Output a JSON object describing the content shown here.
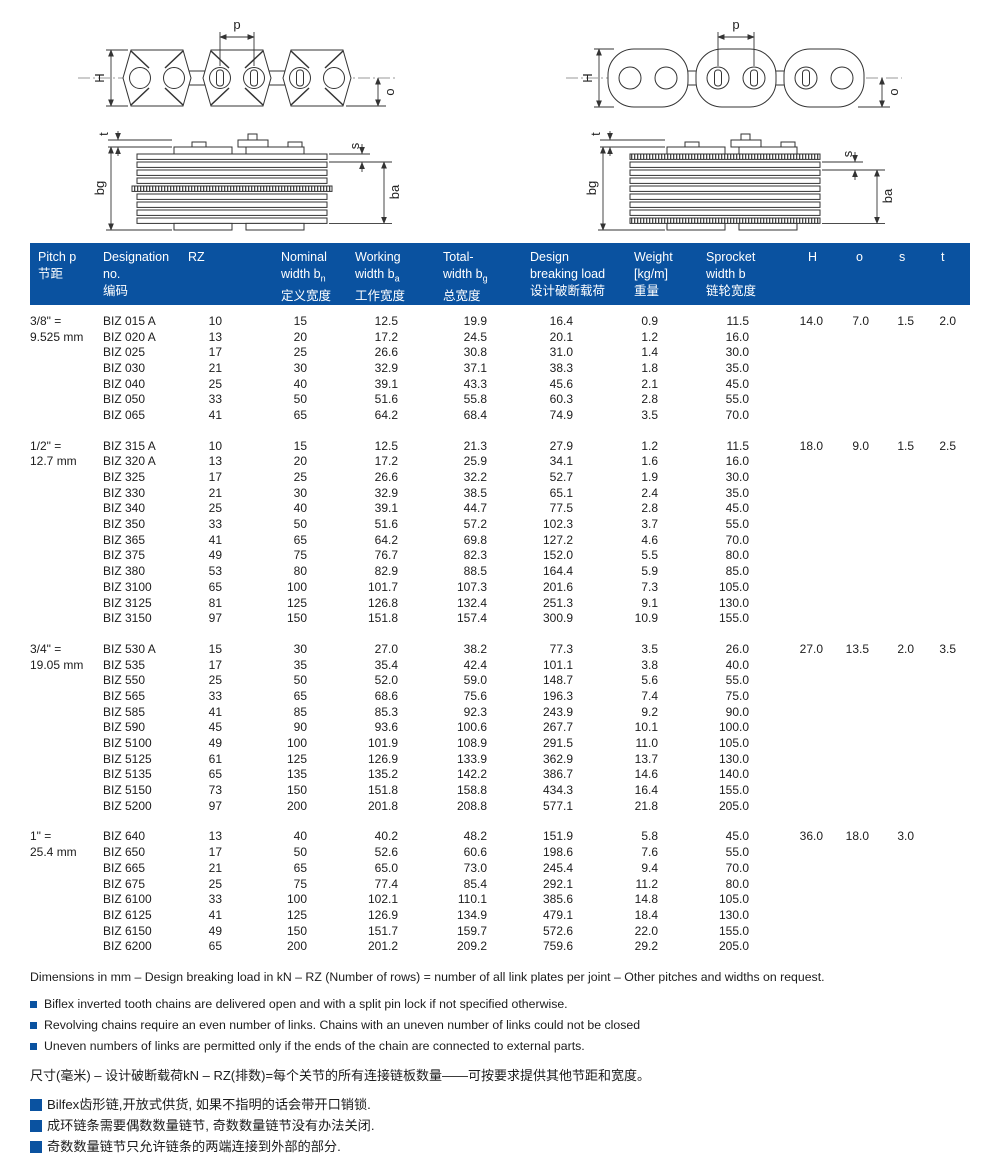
{
  "page": {
    "accent": "#0a52a0",
    "background": "#ffffff",
    "line_color": "#333333"
  },
  "diagram_labels": {
    "p": "p",
    "H": "H",
    "o": "o",
    "t": "t",
    "s": "s",
    "bg": "bg",
    "ba": "ba"
  },
  "table": {
    "header": [
      {
        "l1": "Pitch p",
        "l2": "",
        "l3": "节距"
      },
      {
        "l1": "Designation",
        "l2": "no.",
        "l3": "编码"
      },
      {
        "l1": "RZ"
      },
      {
        "l1": "Nominal",
        "l2": "width b",
        "sub": "n",
        "l3": "定义宽度"
      },
      {
        "l1": "Working",
        "l2": "width b",
        "sub": "a",
        "l3": "工作宽度"
      },
      {
        "l1": "Total-",
        "l2": "width b",
        "sub": "g",
        "l3": "总宽度"
      },
      {
        "l1": "Design",
        "l2": "breaking load",
        "l3": "设计破断载荷"
      },
      {
        "l1": "Weight",
        "l2": "[kg/m]",
        "l3": "重量"
      },
      {
        "l1": "Sprocket",
        "l2": "width b",
        "l3": "链轮宽度"
      },
      {
        "l1": "H"
      },
      {
        "l1": "o"
      },
      {
        "l1": "s"
      },
      {
        "l1": "t"
      }
    ],
    "groups": [
      {
        "pitch": [
          "3/8\" =",
          "9.525 mm"
        ],
        "host": [
          "14.0",
          "7.0",
          "1.5",
          "2.0"
        ],
        "rows": [
          [
            "BIZ 015 A",
            "10",
            "15",
            "12.5",
            "19.9",
            "16.4",
            "0.9",
            "11.5"
          ],
          [
            "BIZ 020 A",
            "13",
            "20",
            "17.2",
            "24.5",
            "20.1",
            "1.2",
            "16.0"
          ],
          [
            "BIZ 025",
            "17",
            "25",
            "26.6",
            "30.8",
            "31.0",
            "1.4",
            "30.0"
          ],
          [
            "BIZ 030",
            "21",
            "30",
            "32.9",
            "37.1",
            "38.3",
            "1.8",
            "35.0"
          ],
          [
            "BIZ 040",
            "25",
            "40",
            "39.1",
            "43.3",
            "45.6",
            "2.1",
            "45.0"
          ],
          [
            "BIZ 050",
            "33",
            "50",
            "51.6",
            "55.8",
            "60.3",
            "2.8",
            "55.0"
          ],
          [
            "BIZ 065",
            "41",
            "65",
            "64.2",
            "68.4",
            "74.9",
            "3.5",
            "70.0"
          ]
        ]
      },
      {
        "pitch": [
          "1/2\" =",
          "12.7 mm"
        ],
        "host": [
          "18.0",
          "9.0",
          "1.5",
          "2.5"
        ],
        "rows": [
          [
            "BIZ 315 A",
            "10",
            "15",
            "12.5",
            "21.3",
            "27.9",
            "1.2",
            "11.5"
          ],
          [
            "BIZ 320 A",
            "13",
            "20",
            "17.2",
            "25.9",
            "34.1",
            "1.6",
            "16.0"
          ],
          [
            "BIZ 325",
            "17",
            "25",
            "26.6",
            "32.2",
            "52.7",
            "1.9",
            "30.0"
          ],
          [
            "BIZ 330",
            "21",
            "30",
            "32.9",
            "38.5",
            "65.1",
            "2.4",
            "35.0"
          ],
          [
            "BIZ 340",
            "25",
            "40",
            "39.1",
            "44.7",
            "77.5",
            "2.8",
            "45.0"
          ],
          [
            "BIZ 350",
            "33",
            "50",
            "51.6",
            "57.2",
            "102.3",
            "3.7",
            "55.0"
          ],
          [
            "BIZ 365",
            "41",
            "65",
            "64.2",
            "69.8",
            "127.2",
            "4.6",
            "70.0"
          ],
          [
            "BIZ 375",
            "49",
            "75",
            "76.7",
            "82.3",
            "152.0",
            "5.5",
            "80.0"
          ],
          [
            "BIZ 380",
            "53",
            "80",
            "82.9",
            "88.5",
            "164.4",
            "5.9",
            "85.0"
          ],
          [
            "BIZ 3100",
            "65",
            "100",
            "101.7",
            "107.3",
            "201.6",
            "7.3",
            "105.0"
          ],
          [
            "BIZ 3125",
            "81",
            "125",
            "126.8",
            "132.4",
            "251.3",
            "9.1",
            "130.0"
          ],
          [
            "BIZ 3150",
            "97",
            "150",
            "151.8",
            "157.4",
            "300.9",
            "10.9",
            "155.0"
          ]
        ]
      },
      {
        "pitch": [
          "3/4\" =",
          "19.05 mm"
        ],
        "host": [
          "27.0",
          "13.5",
          "2.0",
          "3.5"
        ],
        "rows": [
          [
            "BIZ 530 A",
            "15",
            "30",
            "27.0",
            "38.2",
            "77.3",
            "3.5",
            "26.0"
          ],
          [
            "BIZ 535",
            "17",
            "35",
            "35.4",
            "42.4",
            "101.1",
            "3.8",
            "40.0"
          ],
          [
            "BIZ 550",
            "25",
            "50",
            "52.0",
            "59.0",
            "148.7",
            "5.6",
            "55.0"
          ],
          [
            "BIZ 565",
            "33",
            "65",
            "68.6",
            "75.6",
            "196.3",
            "7.4",
            "75.0"
          ],
          [
            "BIZ 585",
            "41",
            "85",
            "85.3",
            "92.3",
            "243.9",
            "9.2",
            "90.0"
          ],
          [
            "BIZ 590",
            "45",
            "90",
            "93.6",
            "100.6",
            "267.7",
            "10.1",
            "100.0"
          ],
          [
            "BIZ 5100",
            "49",
            "100",
            "101.9",
            "108.9",
            "291.5",
            "11.0",
            "105.0"
          ],
          [
            "BIZ 5125",
            "61",
            "125",
            "126.9",
            "133.9",
            "362.9",
            "13.7",
            "130.0"
          ],
          [
            "BIZ 5135",
            "65",
            "135",
            "135.2",
            "142.2",
            "386.7",
            "14.6",
            "140.0"
          ],
          [
            "BIZ 5150",
            "73",
            "150",
            "151.8",
            "158.8",
            "434.3",
            "16.4",
            "155.0"
          ],
          [
            "BIZ 5200",
            "97",
            "200",
            "201.8",
            "208.8",
            "577.1",
            "21.8",
            "205.0"
          ]
        ]
      },
      {
        "pitch": [
          "1\" =",
          "25.4 mm"
        ],
        "host": [
          "36.0",
          "18.0",
          "3.0",
          ""
        ],
        "rows": [
          [
            "BIZ 640",
            "13",
            "40",
            "40.2",
            "48.2",
            "151.9",
            "5.8",
            "45.0"
          ],
          [
            "BIZ 650",
            "17",
            "50",
            "52.6",
            "60.6",
            "198.6",
            "7.6",
            "55.0"
          ],
          [
            "BIZ 665",
            "21",
            "65",
            "65.0",
            "73.0",
            "245.4",
            "9.4",
            "70.0"
          ],
          [
            "BIZ 675",
            "25",
            "75",
            "77.4",
            "85.4",
            "292.1",
            "11.2",
            "80.0"
          ],
          [
            "BIZ 6100",
            "33",
            "100",
            "102.1",
            "110.1",
            "385.6",
            "14.8",
            "105.0"
          ],
          [
            "BIZ 6125",
            "41",
            "125",
            "126.9",
            "134.9",
            "479.1",
            "18.4",
            "130.0"
          ],
          [
            "BIZ 6150",
            "49",
            "150",
            "151.7",
            "159.7",
            "572.6",
            "22.0",
            "155.0"
          ],
          [
            "BIZ 6200",
            "65",
            "200",
            "201.2",
            "209.2",
            "759.6",
            "29.2",
            "205.0"
          ]
        ]
      }
    ]
  },
  "notes": {
    "dims_note": "Dimensions in mm – Design breaking load in kN – RZ (Number of rows) = number of all link plates per joint – Other pitches and widths on request.",
    "en_bullets": [
      "Biflex inverted tooth chains are delivered open and with a split pin lock if not specified otherwise.",
      "Revolving chains require an even number of links. Chains with an uneven number of links could not be closed",
      "Uneven numbers of links are permitted only if the ends of the chain are connected to external parts."
    ],
    "zh_note": "尺寸(毫米) – 设计破断载荷kN – RZ(排数)=每个关节的所有连接链板数量——可按要求提供其他节距和宽度。",
    "zh_bullets": [
      "Bilfex齿形链,开放式供货, 如果不指明的话会带开口销锁.",
      "成环链条需要偶数数量链节, 奇数数量链节没有办法关闭.",
      "奇数数量链节只允许链条的两端连接到外部的部分."
    ]
  }
}
